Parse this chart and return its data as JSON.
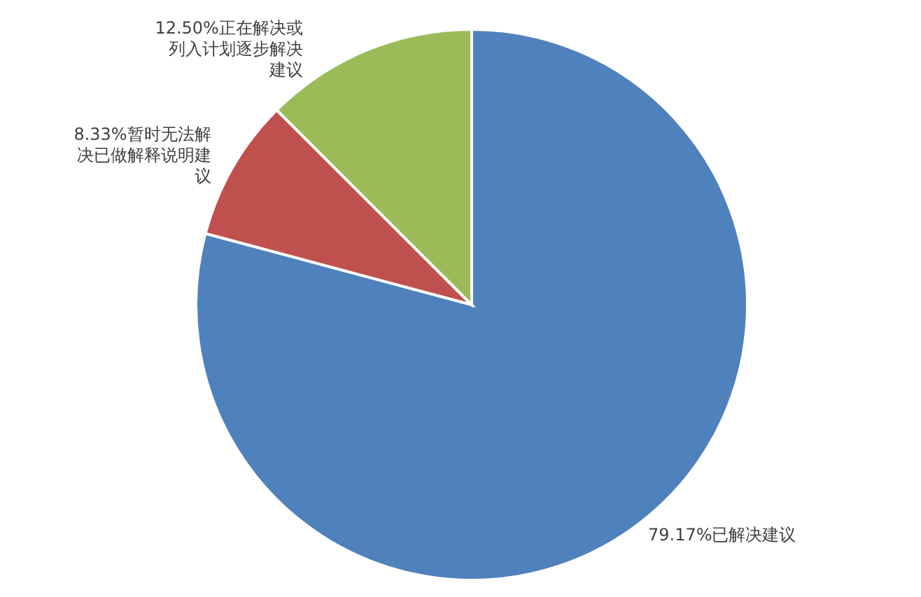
{
  "chart_data": {
    "type": "pie",
    "categories": [
      "已解决建议",
      "暂时无法解决已做解释说明建议",
      "正在解决或列入计划逐步解决建议"
    ],
    "values": [
      79.17,
      8.33,
      12.5
    ],
    "value_labels": [
      "79.17%",
      "8.33%",
      "12.50%"
    ],
    "colors": [
      "#4f81bd",
      "#c0504d",
      "#9bbb59"
    ]
  }
}
